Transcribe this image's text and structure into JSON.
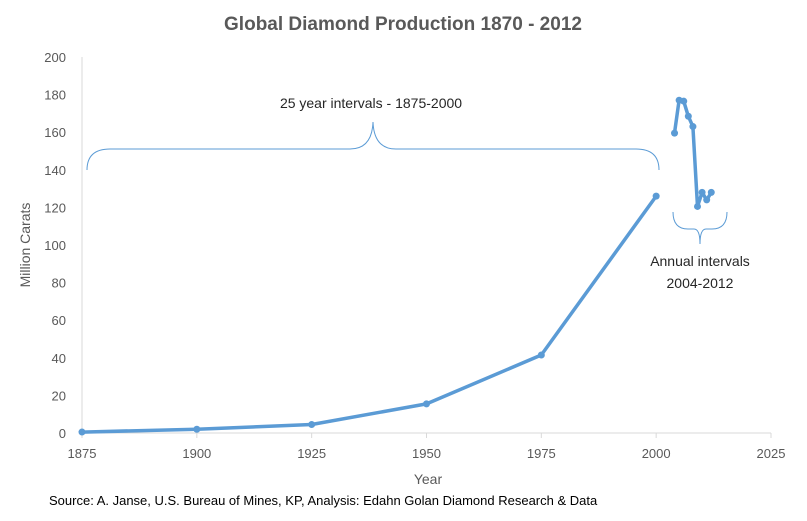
{
  "chart_data": {
    "type": "scatter",
    "title": "Global Diamond Production 1870 - 2012",
    "xlabel": "Year",
    "ylabel": "Million Carats",
    "xlim": [
      1875,
      2025
    ],
    "ylim": [
      0,
      200
    ],
    "x_ticks": [
      "1875",
      "1900",
      "1925",
      "1950",
      "1975",
      "2000",
      "2025"
    ],
    "y_ticks": [
      "0",
      "20",
      "40",
      "60",
      "80",
      "100",
      "120",
      "140",
      "160",
      "180",
      "200"
    ],
    "grid": false,
    "series": [
      {
        "points": [
          [
            1875,
            0.5
          ],
          [
            1900,
            2
          ],
          [
            1925,
            4.5
          ],
          [
            1950,
            15.5
          ],
          [
            1975,
            41.5
          ],
          [
            2000,
            126
          ]
        ]
      },
      {
        "points": [
          [
            2004,
            159.5
          ],
          [
            2005,
            177
          ],
          [
            2006,
            176.5
          ],
          [
            2007,
            168.5
          ],
          [
            2008,
            163
          ],
          [
            2009,
            120.5
          ],
          [
            2010,
            128
          ],
          [
            2011,
            124
          ],
          [
            2012,
            128
          ]
        ]
      }
    ],
    "annotations": {
      "left_brace": "25 year intervals - 1875-2000",
      "right_brace_line1": "Annual intervals",
      "right_brace_line2": "2004-2012"
    },
    "source": "Source: A. Janse, U.S. Bureau of Mines, KP, Analysis: Edahn Golan Diamond Research & Data",
    "colors": {
      "series": "#5B9BD5",
      "axis": "#D9D9D9",
      "text": "#595959"
    }
  }
}
